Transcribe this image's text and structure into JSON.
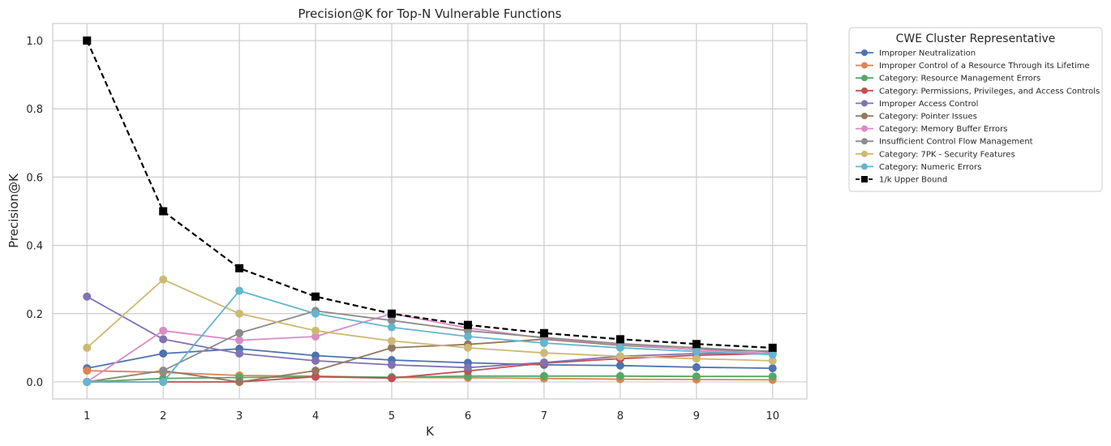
{
  "chart_data": {
    "type": "line",
    "title": "Precision@K for Top-N Vulnerable Functions",
    "xlabel": "K",
    "ylabel": "Precision@K",
    "x": [
      1,
      2,
      3,
      4,
      5,
      6,
      7,
      8,
      9,
      10
    ],
    "xticks": [
      "1",
      "2",
      "3",
      "4",
      "5",
      "6",
      "7",
      "8",
      "9",
      "10"
    ],
    "yticks": [
      "0.0",
      "0.2",
      "0.4",
      "0.6",
      "0.8",
      "1.0"
    ],
    "ytick_values": [
      0,
      0.2,
      0.4,
      0.6,
      0.8,
      1.0
    ],
    "xlim": [
      0.55,
      10.45
    ],
    "ylim": [
      -0.05,
      1.05
    ],
    "grid": true,
    "legend": {
      "title": "CWE Cluster Representative",
      "placement": "outside-right"
    },
    "series": [
      {
        "name": "Improper Neutralization",
        "color": "#4c72b0",
        "marker": "circle",
        "values": [
          0.04,
          0.083,
          0.097,
          0.077,
          0.064,
          0.056,
          0.05,
          0.048,
          0.043,
          0.04
        ]
      },
      {
        "name": "Improper Control of a Resource Through its Lifetime",
        "color": "#dd8452",
        "marker": "circle",
        "values": [
          0.033,
          0.028,
          0.019,
          0.017,
          0.013,
          0.012,
          0.01,
          0.008,
          0.007,
          0.006
        ]
      },
      {
        "name": "Category: Resource Management Errors",
        "color": "#55a868",
        "marker": "circle",
        "values": [
          0.0,
          0.01,
          0.013,
          0.015,
          0.014,
          0.017,
          0.017,
          0.017,
          0.016,
          0.016
        ]
      },
      {
        "name": "Category: Permissions, Privileges, and Access Controls",
        "color": "#c44e52",
        "marker": "circle",
        "values": [
          0.0,
          0.0,
          0.0,
          0.015,
          0.011,
          0.032,
          0.055,
          0.068,
          0.078,
          0.083
        ]
      },
      {
        "name": "Improper Access Control",
        "color": "#8172b3",
        "marker": "circle",
        "values": [
          0.25,
          0.125,
          0.083,
          0.062,
          0.05,
          0.042,
          0.057,
          0.075,
          0.083,
          0.085
        ]
      },
      {
        "name": "Category: Pointer Issues",
        "color": "#937860",
        "marker": "circle",
        "values": [
          0.0,
          0.033,
          0.0,
          0.033,
          0.1,
          0.11,
          0.125,
          0.107,
          0.095,
          0.09
        ]
      },
      {
        "name": "Category: Memory Buffer Errors",
        "color": "#da8bc3",
        "marker": "circle",
        "values": [
          0.0,
          0.15,
          0.122,
          0.133,
          0.2,
          0.158,
          0.128,
          0.11,
          0.094,
          0.083
        ]
      },
      {
        "name": "Insufficient Control Flow Management",
        "color": "#8c8c8c",
        "marker": "circle",
        "values": [
          0.0,
          0.033,
          0.143,
          0.208,
          0.18,
          0.15,
          0.13,
          0.112,
          0.1,
          0.088
        ]
      },
      {
        "name": "Category: 7PK - Security Features",
        "color": "#ccb974",
        "marker": "circle",
        "values": [
          0.1,
          0.3,
          0.2,
          0.15,
          0.12,
          0.1,
          0.085,
          0.075,
          0.068,
          0.062
        ]
      },
      {
        "name": "Category: Numeric Errors",
        "color": "#64b5cd",
        "marker": "circle",
        "values": [
          0.0,
          0.0,
          0.267,
          0.2,
          0.16,
          0.133,
          0.114,
          0.1,
          0.089,
          0.08
        ]
      },
      {
        "name": "1/k Upper Bound",
        "color": "#000000",
        "marker": "square",
        "dashed": true,
        "values": [
          1.0,
          0.5,
          0.333,
          0.25,
          0.2,
          0.167,
          0.143,
          0.125,
          0.111,
          0.1
        ]
      }
    ]
  }
}
